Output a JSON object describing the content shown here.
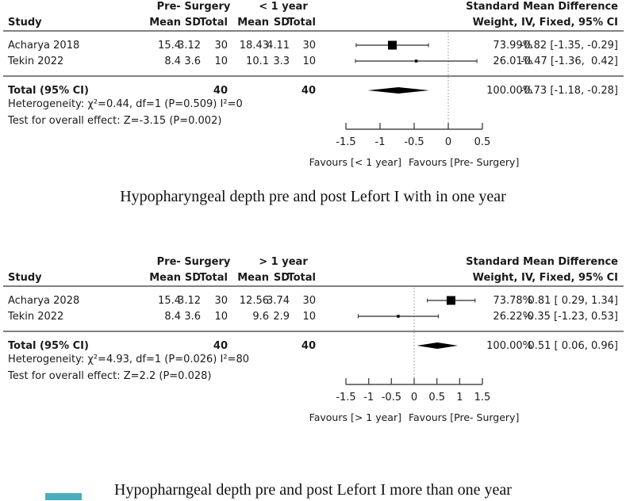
{
  "page": {
    "background": "#ffffff",
    "text_color": "#1a1a1a"
  },
  "artifact": {
    "color": "#49aebd"
  },
  "chart_data": [
    {
      "type": "forest",
      "caption": "Hypopharyngeal depth pre and post Lefort I with in one year",
      "headers": {
        "study": "Study",
        "group1": "Pre- Surgery",
        "group2": "< 1 year",
        "mean": "Mean",
        "sd": "SD",
        "total": "Total",
        "smd_line1": "Standard Mean Difference",
        "smd_line2": "Weight, IV, Fixed, 95% CI"
      },
      "studies": [
        {
          "name": "Acharya 2018",
          "g1_mean": "15.4",
          "g1_sd": "3.12",
          "g1_total": "30",
          "g2_mean": "18.43",
          "g2_sd": "4.11",
          "g2_total": "30",
          "weight_pct": 73.99,
          "weight_label": "73.99%",
          "estimate": -0.82,
          "ci_lower": -1.35,
          "ci_upper": -0.29,
          "estimate_label": "-0.82 [-1.35, -0.29]"
        },
        {
          "name": "Tekin 2022",
          "g1_mean": "8.4",
          "g1_sd": "3.6",
          "g1_total": "10",
          "g2_mean": "10.1",
          "g2_sd": "3.3",
          "g2_total": "10",
          "weight_pct": 26.01,
          "weight_label": "26.01%",
          "estimate": -0.47,
          "ci_lower": -1.36,
          "ci_upper": 0.42,
          "estimate_label": "-0.47 [-1.36,  0.42]"
        }
      ],
      "total": {
        "label": "Total (95% CI)",
        "g1_total": "40",
        "g2_total": "40",
        "weight_label": "100.00%",
        "estimate": -0.73,
        "ci_lower": -1.18,
        "ci_upper": -0.28,
        "estimate_label": "-0.73 [-1.18, -0.28]"
      },
      "heterogeneity": "Heterogeneity: χ²=0.44, df=1 (P=0.509) I²=0",
      "overall_test": "Test for overall effect: Z=-3.15 (P=0.002)",
      "axis": {
        "min": -1.5,
        "max": 0.5,
        "zero": 0,
        "ticks": [
          -1.5,
          -1,
          -0.5,
          0,
          0.5
        ],
        "tick_labels": [
          "-1.5",
          "-1",
          "-0.5",
          "0",
          "0.5"
        ]
      },
      "favours_left": "Favours [< 1 year]",
      "favours_right": "Favours [Pre- Surgery]"
    },
    {
      "type": "forest",
      "caption": "Hypopharngeal depth pre and post Lefort I more than one year",
      "headers": {
        "study": "Study",
        "group1": "Pre- Surgery",
        "group2": "> 1 year",
        "mean": "Mean",
        "sd": "SD",
        "total": "Total",
        "smd_line1": "Standard Mean Difference",
        "smd_line2": "Weight, IV, Fixed, 95% CI"
      },
      "studies": [
        {
          "name": "Acharya 2028",
          "g1_mean": "15.4",
          "g1_sd": "3.12",
          "g1_total": "30",
          "g2_mean": "12.56",
          "g2_sd": "3.74",
          "g2_total": "30",
          "weight_pct": 73.78,
          "weight_label": "73.78%",
          "estimate": 0.81,
          "ci_lower": 0.29,
          "ci_upper": 1.34,
          "estimate_label": "0.81 [ 0.29, 1.34]"
        },
        {
          "name": "Tekin 2022",
          "g1_mean": "8.4",
          "g1_sd": "3.6",
          "g1_total": "10",
          "g2_mean": "9.6",
          "g2_sd": "2.9",
          "g2_total": "10",
          "weight_pct": 26.22,
          "weight_label": "26.22%",
          "estimate": -0.35,
          "ci_lower": -1.23,
          "ci_upper": 0.53,
          "estimate_label": "-0.35 [-1.23, 0.53]"
        }
      ],
      "total": {
        "label": "Total (95% CI)",
        "g1_total": "40",
        "g2_total": "40",
        "weight_label": "100.00%",
        "estimate": 0.51,
        "ci_lower": 0.06,
        "ci_upper": 0.96,
        "estimate_label": "0.51 [ 0.06, 0.96]"
      },
      "heterogeneity": "Heterogeneity: χ²=4.93, df=1 (P=0.026) I²=80",
      "overall_test": "Test for overall effect: Z=2.2 (P=0.028)",
      "axis": {
        "min": -1.5,
        "max": 1.5,
        "zero": 0,
        "ticks": [
          -1.5,
          -1,
          -0.5,
          0,
          0.5,
          1,
          1.5
        ],
        "tick_labels": [
          "-1.5",
          "-1",
          "-0.5",
          "0",
          "0.5",
          "1",
          "1.5"
        ]
      },
      "favours_left": "Favours [> 1 year]",
      "favours_right": "Favours [Pre- Surgery]"
    }
  ]
}
